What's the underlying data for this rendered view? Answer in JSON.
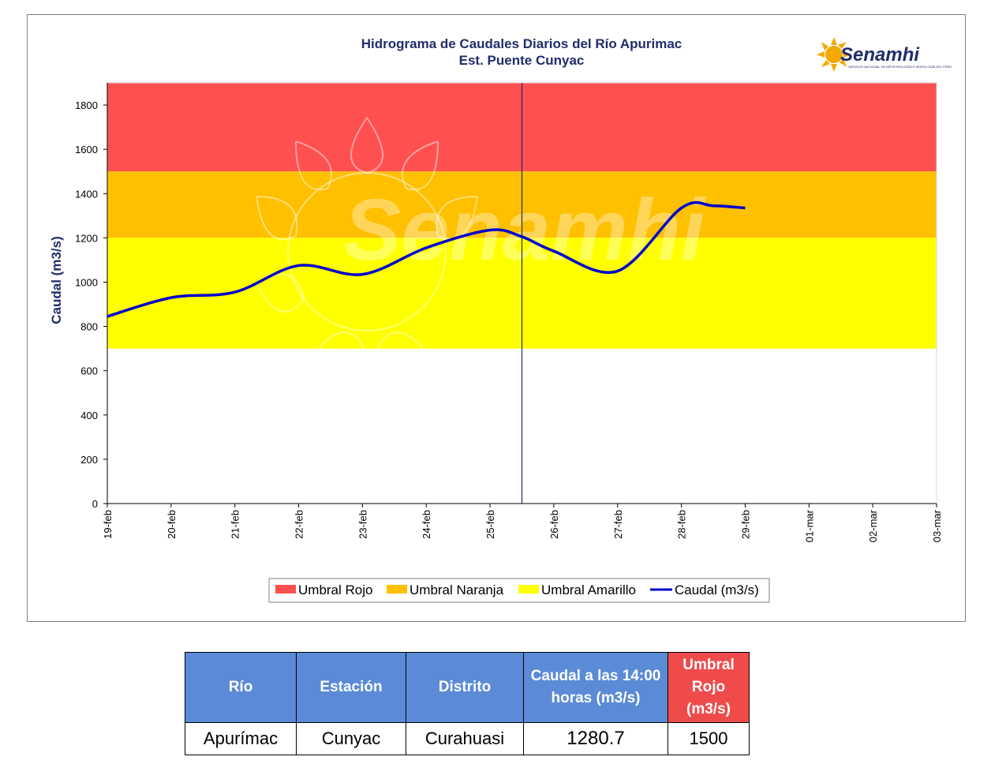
{
  "chart_data": {
    "type": "line",
    "title": "Hidrograma de Caudales Diarios del Río Apurimac",
    "subtitle": "Est. Puente Cunyac",
    "ylabel": "Caudal (m3/s)",
    "xlabel": "",
    "ylim": [
      0,
      1900
    ],
    "yticks": [
      0,
      200,
      400,
      600,
      800,
      1000,
      1200,
      1400,
      1600,
      1800
    ],
    "categories": [
      "19-feb",
      "20-feb",
      "21-feb",
      "22-feb",
      "23-feb",
      "24-feb",
      "25-feb",
      "26-feb",
      "27-feb",
      "28-feb",
      "29-feb",
      "01-mar",
      "02-mar",
      "03-mar"
    ],
    "thresholds": [
      {
        "name": "Umbral Rojo",
        "from": 1500,
        "to": 1900,
        "color": "#ff5050"
      },
      {
        "name": "Umbral Naranja",
        "from": 1200,
        "to": 1500,
        "color": "#ffc000"
      },
      {
        "name": "Umbral Amarillo",
        "from": 700,
        "to": 1200,
        "color": "#ffff00"
      }
    ],
    "current_marker": 6.5,
    "series": [
      {
        "name": "Caudal (m3/s)",
        "color": "#0000cc",
        "x": [
          0,
          1,
          2,
          3,
          4,
          5,
          6,
          6.5,
          7,
          8,
          9,
          9.5,
          10
        ],
        "values": [
          845,
          930,
          955,
          1075,
          1035,
          1155,
          1235,
          1205,
          1140,
          1050,
          1335,
          1345,
          1335
        ]
      }
    ],
    "legend_position": "bottom",
    "grid": false
  },
  "logo": {
    "name": "Senamhi",
    "subtitle": "SERVICIO NACIONAL DE METEOROLOGÍA E HIDROLOGÍA DEL PERÚ"
  },
  "watermark": "Senamhi",
  "table": {
    "headers": [
      "Río",
      "Estación",
      "Distrito",
      "Caudal a las 14:00 horas (m3/s)",
      "Umbral Rojo (m3/s)"
    ],
    "row": [
      "Apurímac",
      "Cunyac",
      "Curahuasi",
      "1280.7",
      "1500"
    ]
  }
}
